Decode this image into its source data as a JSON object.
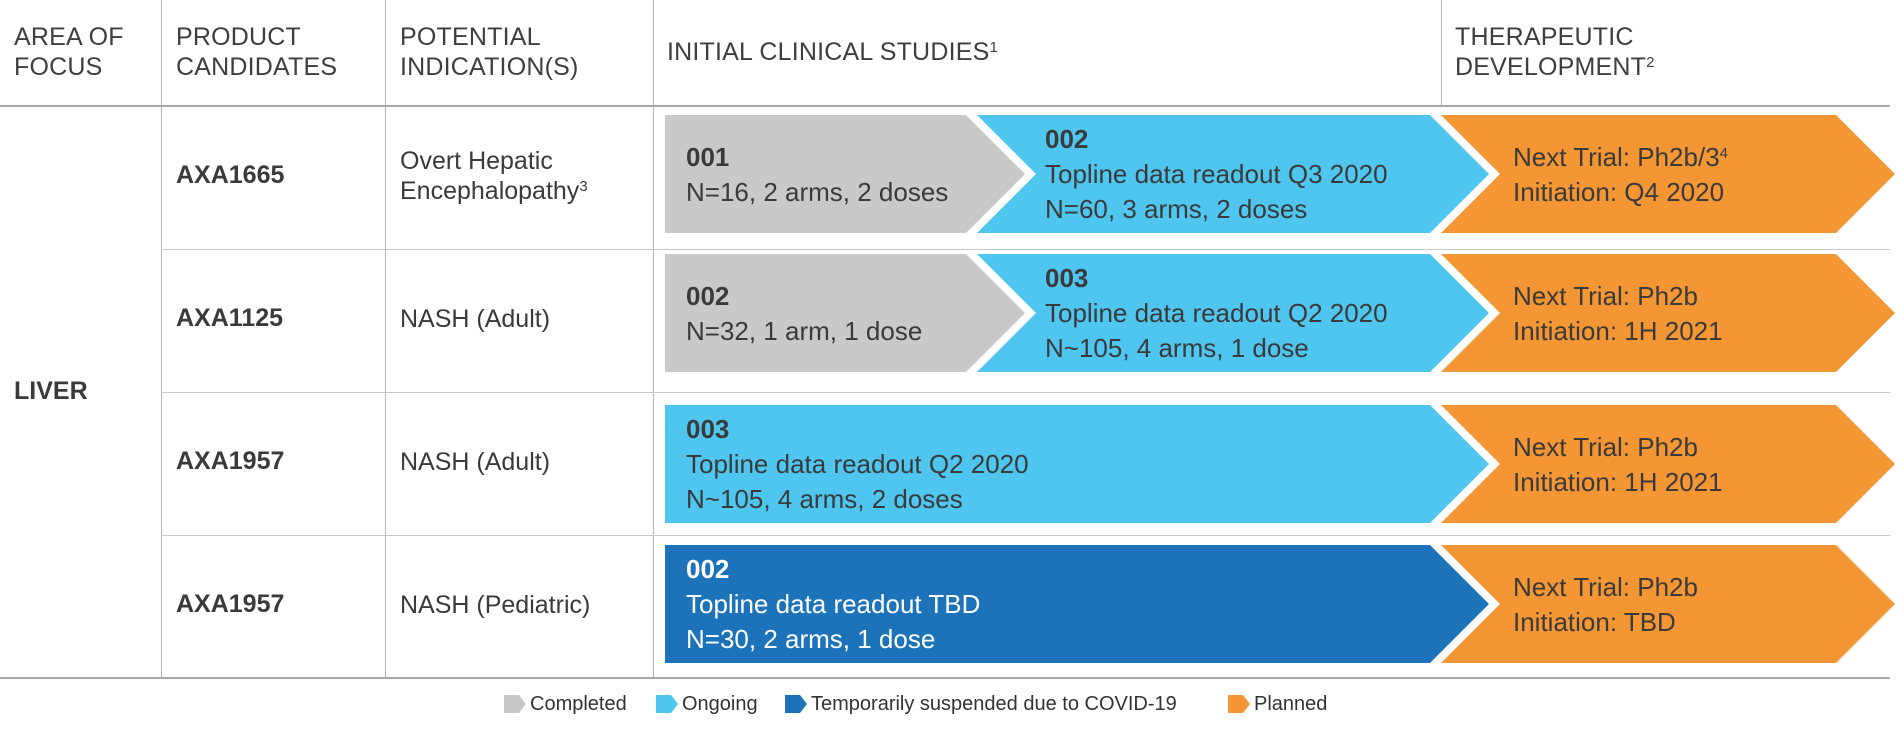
{
  "header": {
    "area_of_focus_1": "AREA OF",
    "area_of_focus_2": "FOCUS",
    "product_candidates_1": "PRODUCT",
    "product_candidates_2": "CANDIDATES",
    "potential_indications_1": "POTENTIAL",
    "potential_indications_2": "INDICATION(S)",
    "initial_clinical_studies": "INITIAL CLINICAL STUDIES",
    "initial_clinical_studies_sup": "1",
    "therapeutic_development_1": "THERAPEUTIC",
    "therapeutic_development_2": "DEVELOPMENT",
    "therapeutic_development_sup": "2"
  },
  "area": "LIVER",
  "rows": [
    {
      "product": "AXA1665",
      "indication_1": "Overt Hepatic",
      "indication_2": "Encephalopathy",
      "indication_sup": "3",
      "completed": {
        "study": "001",
        "line1": "N=16, 2 arms, 2 doses"
      },
      "ongoing": {
        "study": "002",
        "line1": "Topline data readout Q3 2020",
        "line2": "N=60, 3 arms, 2 doses"
      },
      "planned": {
        "line1": "Next Trial: Ph2b/3",
        "line1_sup": "4",
        "line2": "Initiation: Q4 2020"
      }
    },
    {
      "product": "AXA1125",
      "indication_1": "NASH (Adult)",
      "completed": {
        "study": "002",
        "line1": "N=32, 1 arm, 1 dose"
      },
      "ongoing": {
        "study": "003",
        "line1": "Topline data readout Q2 2020",
        "line2": "N~105, 4 arms, 1 dose"
      },
      "planned": {
        "line1": "Next Trial: Ph2b",
        "line2": "Initiation: 1H 2021"
      }
    },
    {
      "product": "AXA1957",
      "indication_1": "NASH (Adult)",
      "ongoing": {
        "study": "003",
        "line1": "Topline data readout Q2 2020",
        "line2": "N~105, 4 arms, 2 doses"
      },
      "planned": {
        "line1": "Next Trial: Ph2b",
        "line2": "Initiation: 1H 2021"
      }
    },
    {
      "product": "AXA1957",
      "indication_1": "NASH (Pediatric)",
      "suspended": {
        "study": "002",
        "line1": "Topline data readout TBD",
        "line2": "N=30, 2 arms, 1 dose"
      },
      "planned": {
        "line1": "Next Trial: Ph2b",
        "line2": "Initiation: TBD"
      }
    }
  ],
  "legend": {
    "completed": "Completed",
    "ongoing": "Ongoing",
    "suspended": "Temporarily suspended due to COVID-19",
    "planned": "Planned"
  },
  "colors": {
    "completed": "#c9c9c9",
    "ongoing": "#4fc6f0",
    "suspended": "#1d73b9",
    "planned": "#f49633"
  }
}
